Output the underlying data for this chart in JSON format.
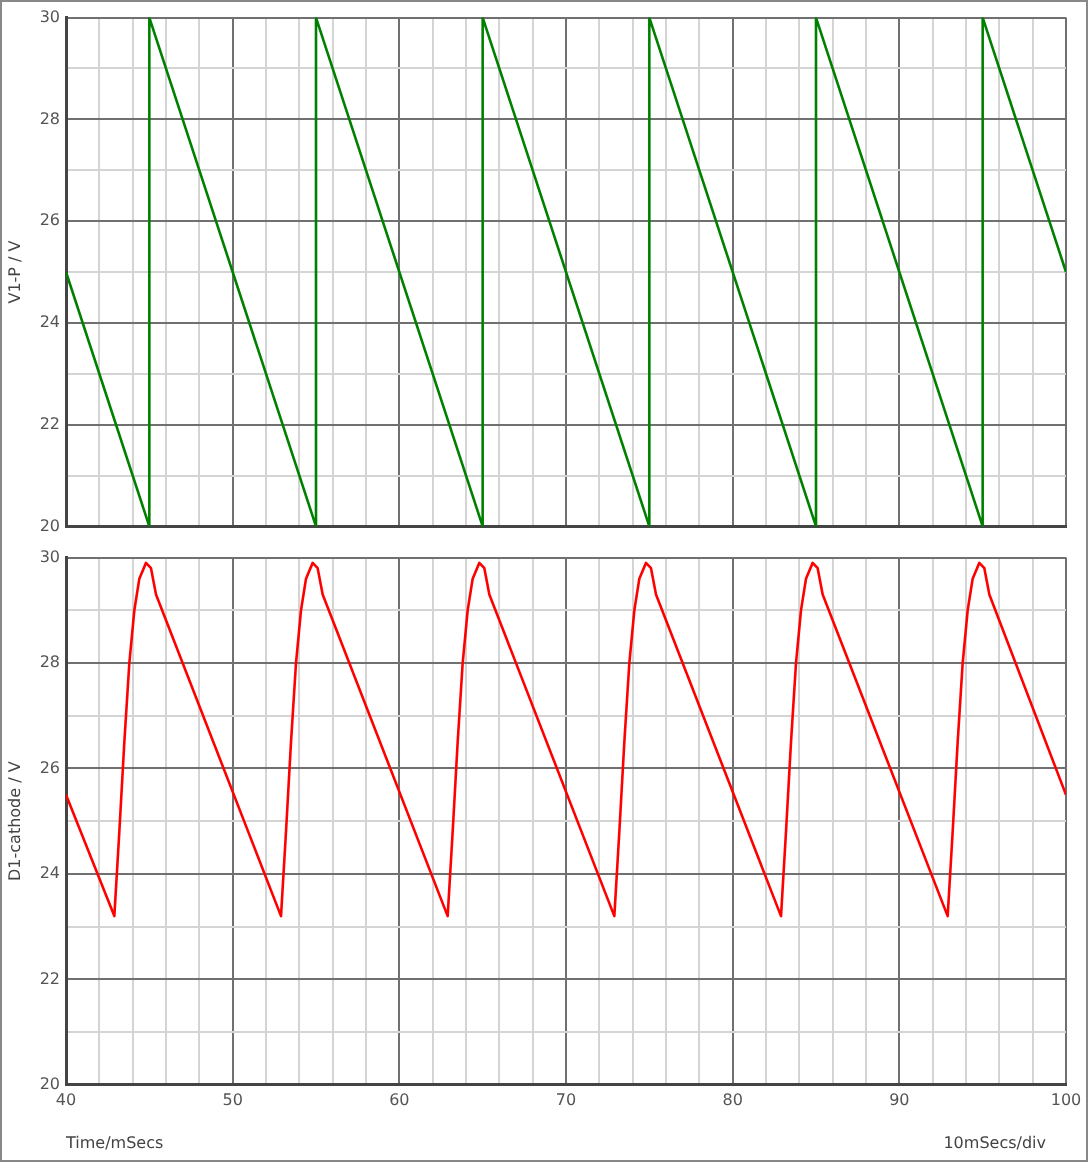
{
  "chart_data": [
    {
      "type": "line",
      "ylabel": "V1-P / V",
      "xlim": [
        40,
        100
      ],
      "ylim": [
        20,
        30
      ],
      "xticks": [
        40,
        {
          "value": 42,
          "label": null
        },
        {
          "value": 44,
          "label": null
        },
        {
          "value": 46,
          "label": null
        },
        {
          "value": 48,
          "label": null
        },
        50,
        {
          "value": 52,
          "label": null
        },
        {
          "value": 54,
          "label": null
        },
        {
          "value": 56,
          "label": null
        },
        {
          "value": 58,
          "label": null
        },
        60,
        {
          "value": 62,
          "label": null
        },
        {
          "value": 64,
          "label": null
        },
        {
          "value": 66,
          "label": null
        },
        {
          "value": 68,
          "label": null
        },
        70,
        {
          "value": 72,
          "label": null
        },
        {
          "value": 74,
          "label": null
        },
        {
          "value": 76,
          "label": null
        },
        {
          "value": 78,
          "label": null
        },
        80,
        {
          "value": 82,
          "label": null
        },
        {
          "value": 84,
          "label": null
        },
        {
          "value": 86,
          "label": null
        },
        {
          "value": 88,
          "label": null
        },
        90,
        {
          "value": 92,
          "label": null
        },
        {
          "value": 94,
          "label": null
        },
        {
          "value": 96,
          "label": null
        },
        {
          "value": 98,
          "label": null
        },
        100
      ],
      "yticks": [
        20,
        {
          "value": 21,
          "label": null
        },
        22,
        {
          "value": 23,
          "label": null
        },
        24,
        {
          "value": 25,
          "label": null
        },
        26,
        {
          "value": 27,
          "label": null
        },
        28,
        {
          "value": 29,
          "label": null
        },
        30
      ],
      "tick_labels": "y",
      "grid": true,
      "legend": false,
      "marker": "none",
      "line_style": "solid",
      "series": [
        {
          "color": "#008000",
          "x": [
            40,
            45,
            45,
            55,
            55,
            65,
            65,
            75,
            75,
            85,
            85,
            95,
            95,
            100
          ],
          "values": [
            25,
            20,
            30,
            20,
            30,
            20,
            30,
            20,
            30,
            20,
            30,
            20,
            30,
            25
          ]
        }
      ]
    },
    {
      "type": "line",
      "xlabel": "Time/mSecs",
      "ylabel": "D1-cathode / V",
      "annotations": [
        "10mSecs/div"
      ],
      "xlim": [
        40,
        100
      ],
      "ylim": [
        20,
        30
      ],
      "xticks": [
        40,
        {
          "value": 42,
          "label": null
        },
        {
          "value": 44,
          "label": null
        },
        {
          "value": 46,
          "label": null
        },
        {
          "value": 48,
          "label": null
        },
        50,
        {
          "value": 52,
          "label": null
        },
        {
          "value": 54,
          "label": null
        },
        {
          "value": 56,
          "label": null
        },
        {
          "value": 58,
          "label": null
        },
        60,
        {
          "value": 62,
          "label": null
        },
        {
          "value": 64,
          "label": null
        },
        {
          "value": 66,
          "label": null
        },
        {
          "value": 68,
          "label": null
        },
        70,
        {
          "value": 72,
          "label": null
        },
        {
          "value": 74,
          "label": null
        },
        {
          "value": 76,
          "label": null
        },
        {
          "value": 78,
          "label": null
        },
        80,
        {
          "value": 82,
          "label": null
        },
        {
          "value": 84,
          "label": null
        },
        {
          "value": 86,
          "label": null
        },
        {
          "value": 88,
          "label": null
        },
        90,
        {
          "value": 92,
          "label": null
        },
        {
          "value": 94,
          "label": null
        },
        {
          "value": 96,
          "label": null
        },
        {
          "value": 98,
          "label": null
        },
        100
      ],
      "yticks": [
        20,
        {
          "value": 21,
          "label": null
        },
        22,
        {
          "value": 23,
          "label": null
        },
        24,
        {
          "value": 25,
          "label": null
        },
        26,
        {
          "value": 27,
          "label": null
        },
        28,
        {
          "value": 29,
          "label": null
        },
        30
      ],
      "grid": true,
      "legend": false,
      "marker": "none",
      "line_style": "solid",
      "series": [
        {
          "color": "#ff0000",
          "x": [
            40,
            42.9,
            43.2,
            43.5,
            43.8,
            44.1,
            44.4,
            44.8,
            45.1,
            45.4,
            52.9,
            53.2,
            53.5,
            53.8,
            54.1,
            54.4,
            54.8,
            55.1,
            55.4,
            62.9,
            63.2,
            63.5,
            63.8,
            64.1,
            64.4,
            64.8,
            65.1,
            65.4,
            72.9,
            73.2,
            73.5,
            73.8,
            74.1,
            74.4,
            74.8,
            75.1,
            75.4,
            82.9,
            83.2,
            83.5,
            83.8,
            84.1,
            84.4,
            84.8,
            85.1,
            85.4,
            92.9,
            93.2,
            93.5,
            93.8,
            94.1,
            94.4,
            94.8,
            95.1,
            95.4,
            100
          ],
          "values": [
            25.5,
            23.2,
            24.8,
            26.5,
            28.0,
            29.0,
            29.6,
            29.9,
            29.8,
            29.3,
            23.2,
            24.8,
            26.5,
            28.0,
            29.0,
            29.6,
            29.9,
            29.8,
            29.3,
            23.2,
            24.8,
            26.5,
            28.0,
            29.0,
            29.6,
            29.9,
            29.8,
            29.3,
            23.2,
            24.8,
            26.5,
            28.0,
            29.0,
            29.6,
            29.9,
            29.8,
            29.3,
            23.2,
            24.8,
            26.5,
            28.0,
            29.0,
            29.6,
            29.9,
            29.8,
            29.3,
            23.2,
            24.8,
            26.5,
            28.0,
            29.0,
            29.6,
            29.9,
            29.8,
            29.3,
            25.5
          ]
        }
      ]
    }
  ]
}
